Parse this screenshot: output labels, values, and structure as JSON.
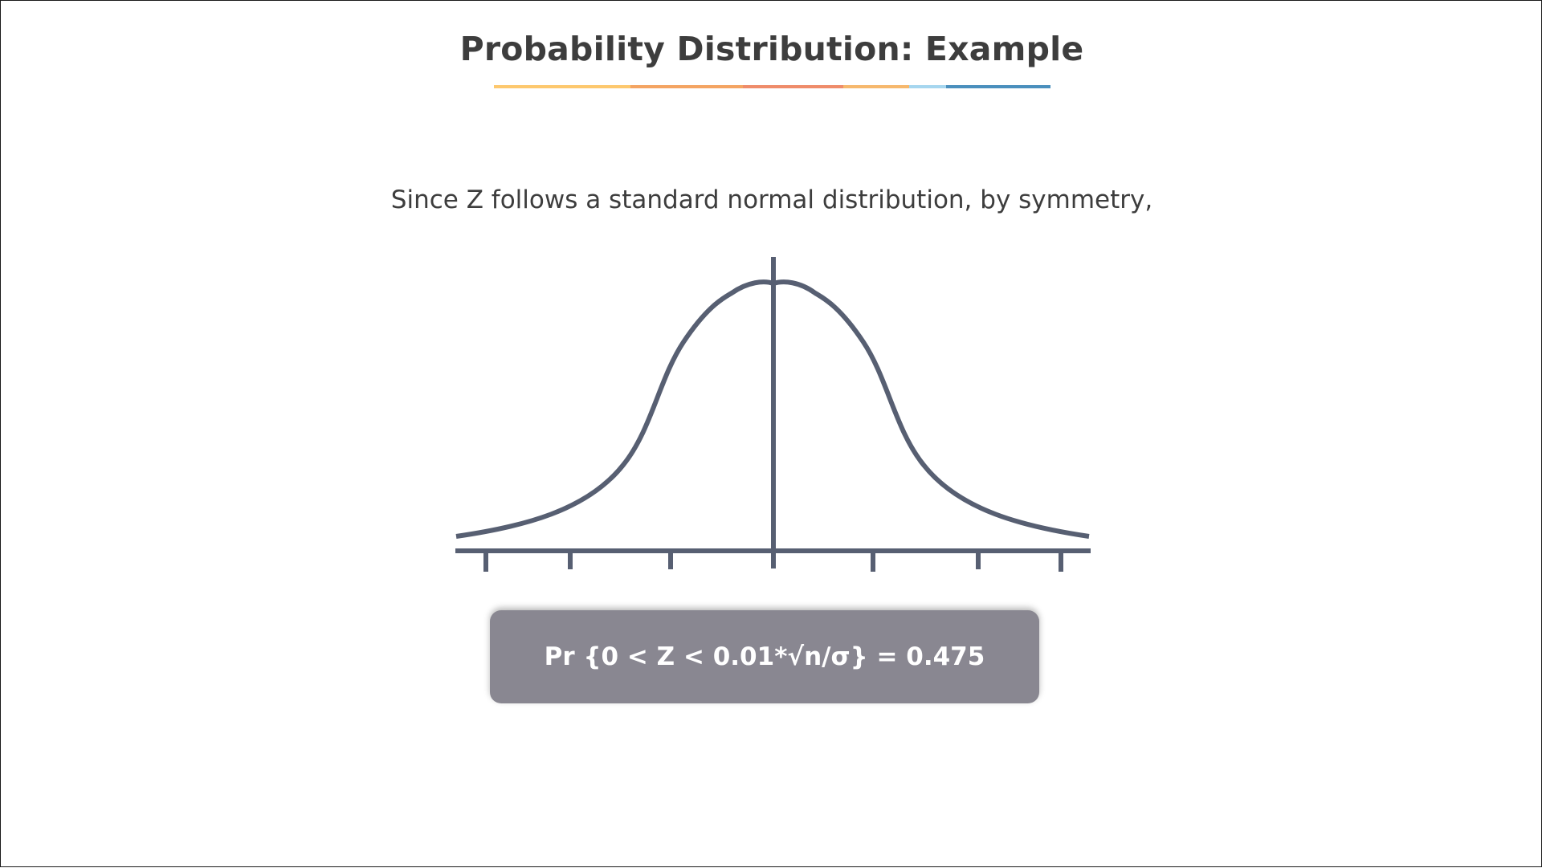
{
  "slide": {
    "title": "Probability Distribution: Example",
    "subtitle": "Since Z follows a standard normal distribution, by symmetry,",
    "formula": "Pr {0 < Z < 0.01*√n/σ} = 0.475"
  },
  "colors": {
    "title_text": "#3d3d3d",
    "curve_stroke": "#575f72",
    "formula_box": "#898791",
    "formula_text": "#ffffff",
    "underline_segments": [
      "#fdc86e",
      "#f4a462",
      "#ef8c6a",
      "#f6b86d",
      "#a6d6ef",
      "#4a8fbd"
    ]
  },
  "icons": {
    "curve": "bell-curve-illustration"
  }
}
